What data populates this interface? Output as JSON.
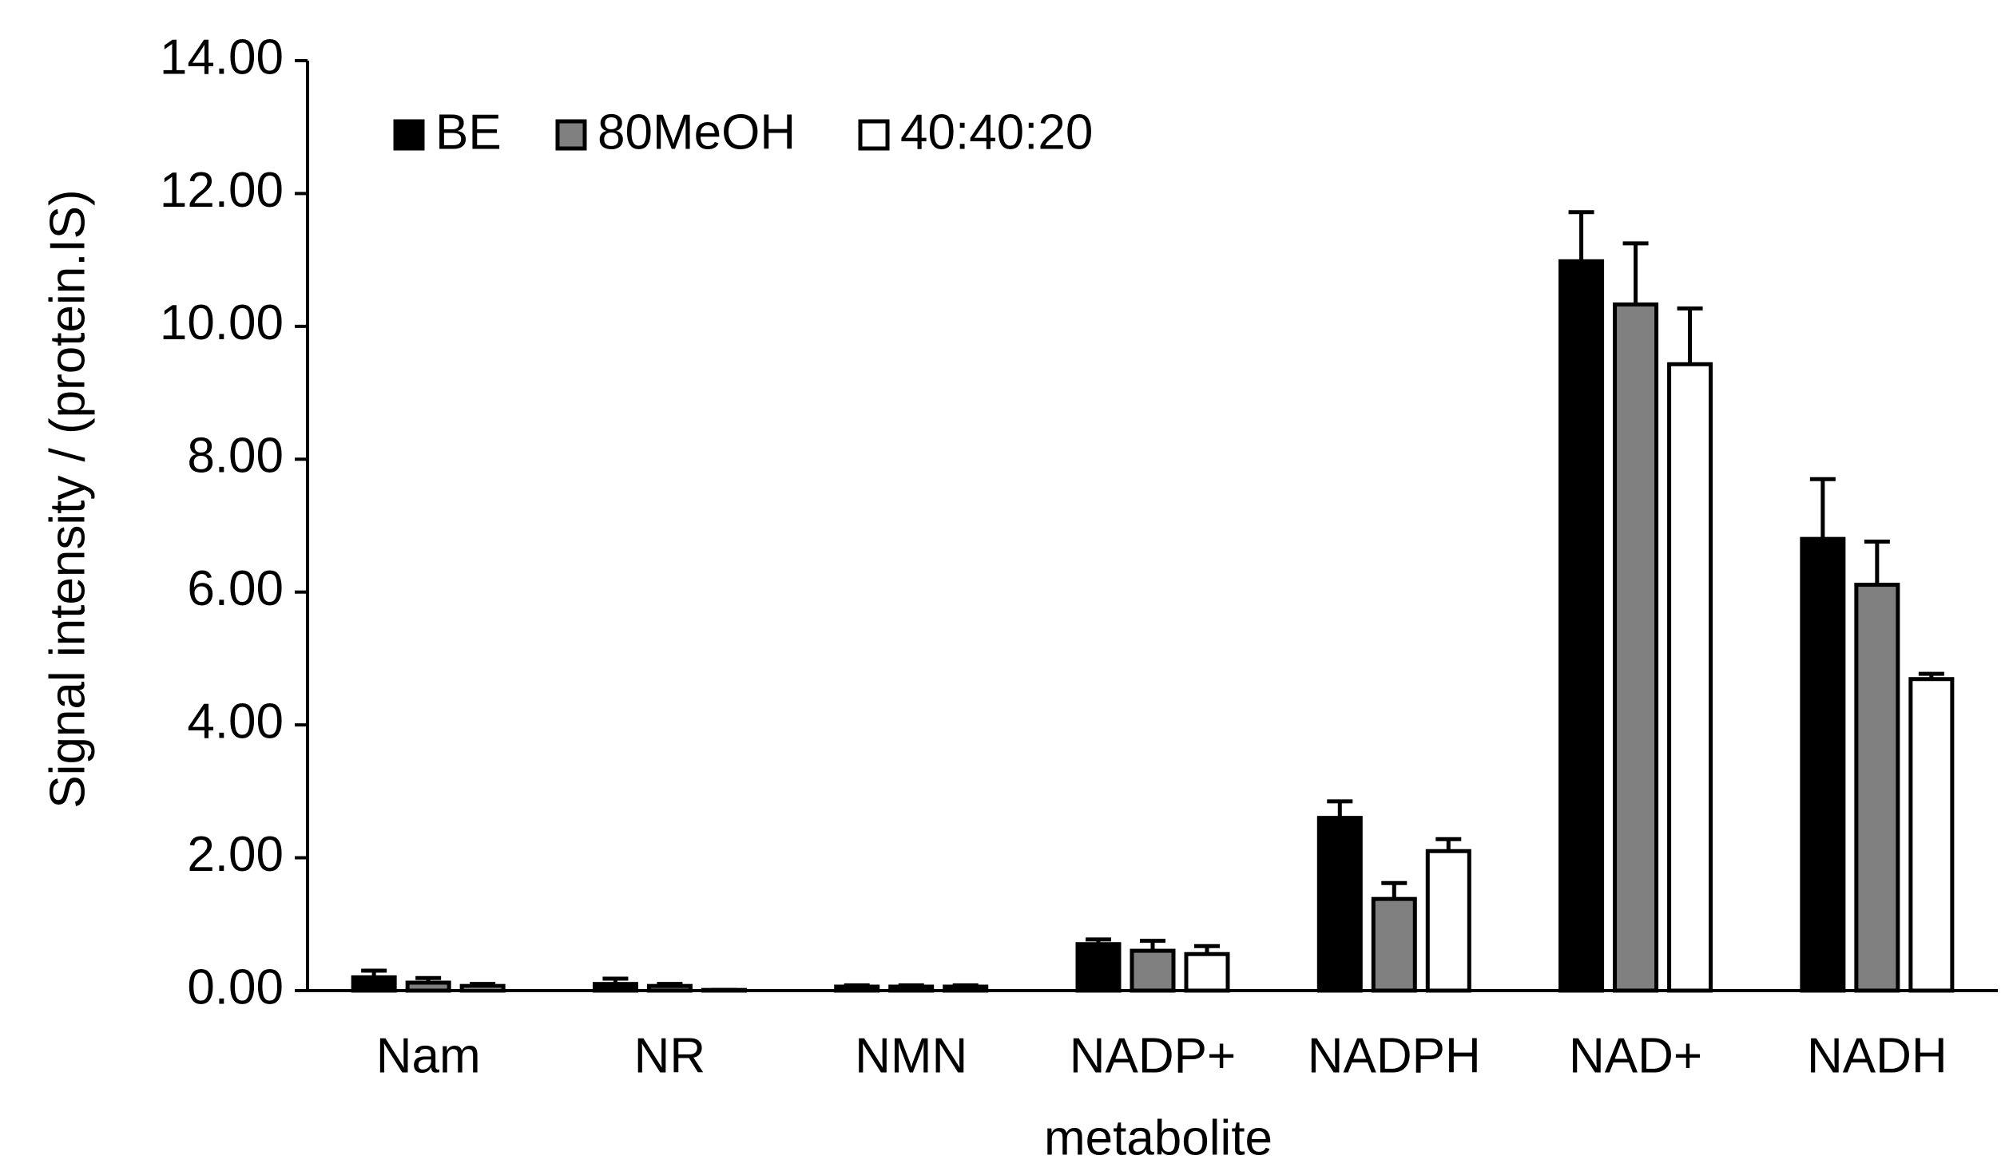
{
  "chart_data": {
    "type": "bar",
    "x_label": "metabolite",
    "y_label": "Signal intensity / (protein.IS)",
    "categories": [
      "Nam",
      "NR",
      "NMN",
      "NADP+",
      "NADPH",
      "NAD+",
      "NADH"
    ],
    "series": [
      {
        "name": "BE",
        "color": "#000000",
        "values": [
          0.2,
          0.1,
          0.06,
          0.7,
          2.6,
          10.98,
          6.8
        ],
        "errors": [
          0.1,
          0.08,
          0.02,
          0.07,
          0.25,
          0.74,
          0.9
        ]
      },
      {
        "name": "80MeOH",
        "color": "#808080",
        "values": [
          0.12,
          0.07,
          0.06,
          0.6,
          1.38,
          10.33,
          6.11
        ],
        "errors": [
          0.07,
          0.03,
          0.02,
          0.15,
          0.24,
          0.92,
          0.65
        ]
      },
      {
        "name": "40:40:20",
        "color": "#ffffff",
        "values": [
          0.07,
          0.01,
          0.06,
          0.55,
          2.1,
          9.43,
          4.69
        ],
        "errors": [
          0.03,
          0,
          0.02,
          0.12,
          0.18,
          0.84,
          0.08
        ]
      }
    ],
    "ylim": [
      0,
      14
    ],
    "yticks": [
      {
        "value": 0,
        "label": "0.00"
      },
      {
        "value": 2,
        "label": "2.00"
      },
      {
        "value": 4,
        "label": "4.00"
      },
      {
        "value": 6,
        "label": "6.00"
      },
      {
        "value": 8,
        "label": "8.00"
      },
      {
        "value": 10,
        "label": "10.00"
      },
      {
        "value": 12,
        "label": "12.00"
      },
      {
        "value": 14,
        "label": "14.00"
      }
    ],
    "grid": false,
    "legend": "top-left"
  }
}
